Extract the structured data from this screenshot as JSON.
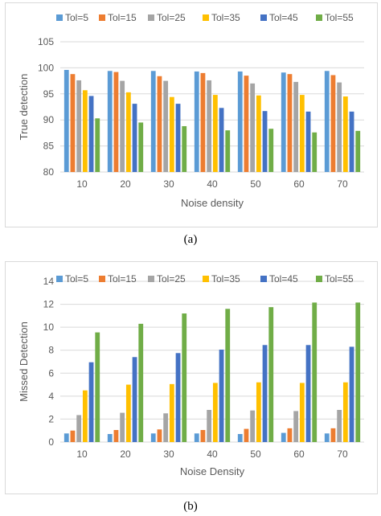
{
  "colors": [
    "#5b9bd5",
    "#ed7d31",
    "#a5a5a5",
    "#ffc000",
    "#4472c4",
    "#70ad47"
  ],
  "captions": [
    "(a)",
    "(b)"
  ],
  "chart_data": [
    {
      "type": "bar",
      "title": "",
      "xlabel": "Noise density",
      "ylabel": "True detection",
      "ylim": [
        80,
        105
      ],
      "yticks": [
        80,
        85,
        90,
        95,
        100,
        105
      ],
      "grid": true,
      "legend": "top",
      "categories": [
        "10",
        "20",
        "30",
        "40",
        "50",
        "60",
        "70"
      ],
      "series": [
        {
          "name": "Tol=5",
          "values": [
            99.6,
            99.4,
            99.4,
            99.3,
            99.3,
            99.1,
            99.4
          ]
        },
        {
          "name": "Tol=15",
          "values": [
            98.8,
            99.2,
            98.4,
            99.0,
            98.5,
            98.8,
            98.6
          ]
        },
        {
          "name": "Tol=25",
          "values": [
            97.6,
            97.5,
            97.5,
            97.6,
            97.0,
            97.3,
            97.2
          ]
        },
        {
          "name": "Tol=35",
          "values": [
            95.7,
            95.3,
            94.4,
            94.8,
            94.7,
            94.8,
            94.5
          ]
        },
        {
          "name": "Tol=45",
          "values": [
            94.6,
            93.1,
            93.1,
            92.3,
            91.7,
            91.6,
            91.6
          ]
        },
        {
          "name": "Tol=55",
          "values": [
            90.3,
            89.5,
            88.8,
            88.0,
            88.3,
            87.6,
            87.9
          ]
        }
      ]
    },
    {
      "type": "bar",
      "title": "",
      "xlabel": "Noise Density",
      "ylabel": "Missed Detection",
      "ylim": [
        0,
        14
      ],
      "yticks": [
        0,
        2,
        4,
        6,
        8,
        10,
        12,
        14
      ],
      "grid": true,
      "legend": "top",
      "categories": [
        "10",
        "20",
        "30",
        "40",
        "50",
        "60",
        "70"
      ],
      "series": [
        {
          "name": "Tol=5",
          "values": [
            0.75,
            0.7,
            0.75,
            0.75,
            0.7,
            0.8,
            0.75
          ]
        },
        {
          "name": "Tol=15",
          "values": [
            1.0,
            1.05,
            1.1,
            1.05,
            1.15,
            1.2,
            1.2
          ]
        },
        {
          "name": "Tol=25",
          "values": [
            2.35,
            2.55,
            2.5,
            2.8,
            2.75,
            2.7,
            2.8
          ]
        },
        {
          "name": "Tol=35",
          "values": [
            4.5,
            5.0,
            5.05,
            5.15,
            5.2,
            5.15,
            5.2
          ]
        },
        {
          "name": "Tol=45",
          "values": [
            6.95,
            7.4,
            7.75,
            8.05,
            8.45,
            8.45,
            8.3
          ]
        },
        {
          "name": "Tol=55",
          "values": [
            9.55,
            10.3,
            11.2,
            11.6,
            11.75,
            12.15,
            12.15
          ]
        }
      ]
    }
  ]
}
